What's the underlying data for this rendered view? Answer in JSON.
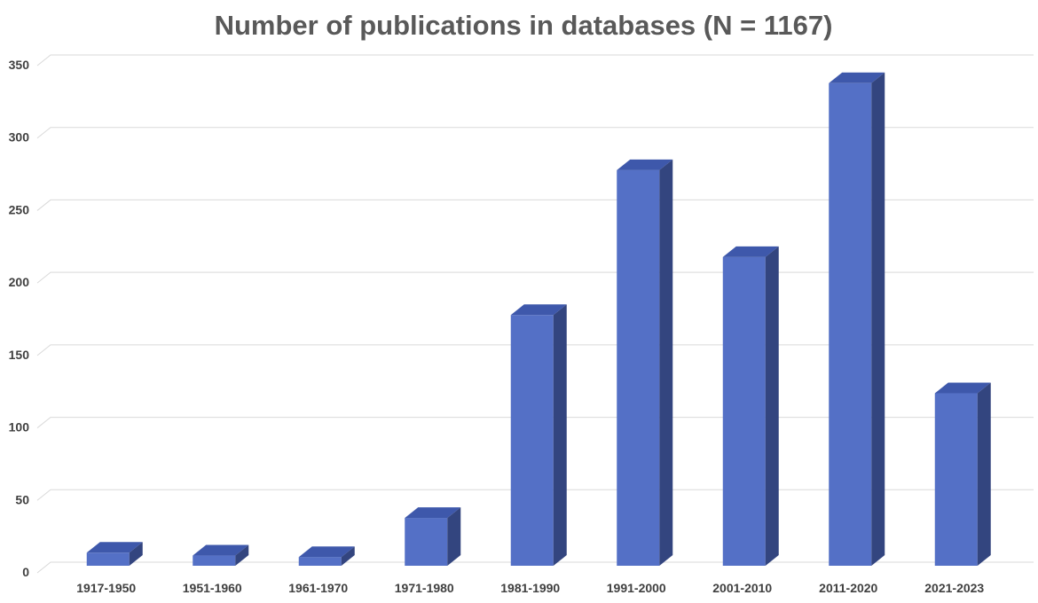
{
  "chart_data": {
    "type": "bar",
    "title": "Number of publications in databases (N = 1167)",
    "xlabel": "",
    "ylabel": "",
    "categories": [
      "1917-1950",
      "1951-1960",
      "1961-1970",
      "1971-1980",
      "1981-1990",
      "1991-2000",
      "2001-2010",
      "2011-2020",
      "2021-2023"
    ],
    "values": [
      9,
      7,
      6,
      33,
      173,
      273,
      213,
      333,
      119
    ],
    "ylim": [
      0,
      350
    ],
    "yticks": [
      "0",
      "50",
      "100",
      "150",
      "200",
      "250",
      "300",
      "350"
    ],
    "grid": true,
    "legend": "none",
    "style": "3d-column",
    "colors": {
      "bar_front": "#5470c6",
      "bar_top": "#3e58ab",
      "bar_side": "#33457f",
      "grid": "#d9d9d9",
      "title": "#595959",
      "tick_text": "#404040"
    }
  }
}
